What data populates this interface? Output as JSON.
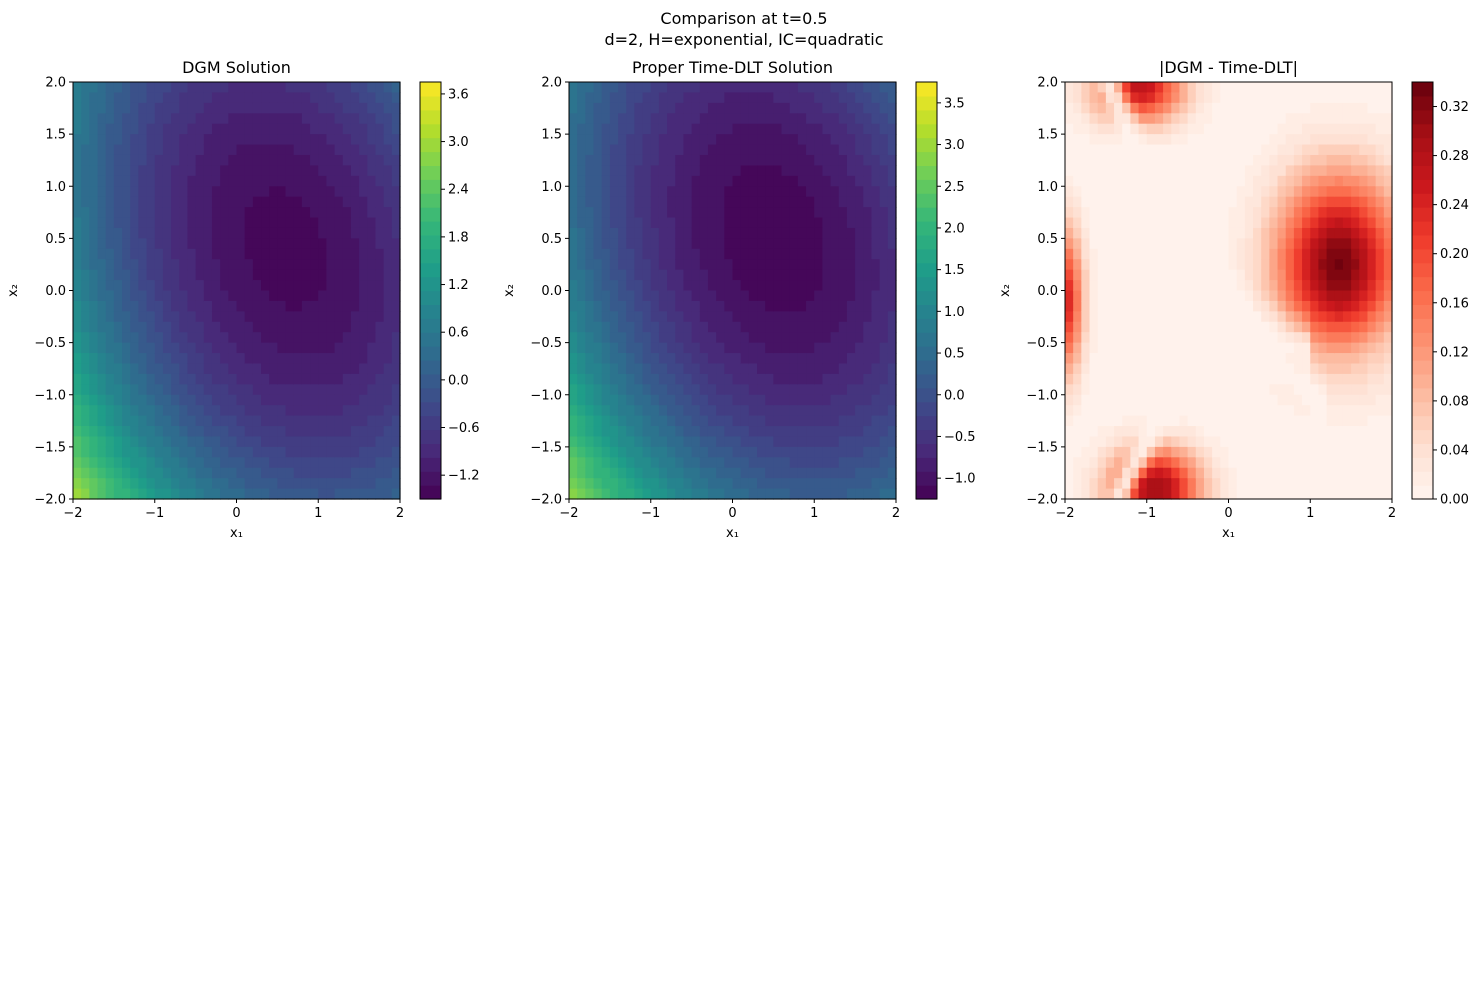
{
  "figure": {
    "suptitle_line1": "Comparison at t=0.5",
    "suptitle_line2": "d=2, H=exponential, IC=quadratic"
  },
  "colors": {
    "viridis": [
      "#440154",
      "#482878",
      "#3e4989",
      "#31688e",
      "#26828e",
      "#1f9e89",
      "#35b779",
      "#6ece58",
      "#b5de2b",
      "#fde725"
    ],
    "reds": [
      "#fff5f0",
      "#fee0d2",
      "#fcbba1",
      "#fc9272",
      "#fb6a4a",
      "#ef3b2c",
      "#cb181d",
      "#a50f15",
      "#67000d"
    ]
  },
  "chart_data": [
    {
      "type": "heatmap",
      "title": "DGM Solution",
      "xlabel": "x₁",
      "ylabel": "x₂",
      "xlim": [
        -2,
        2
      ],
      "ylim": [
        -2,
        2
      ],
      "xticks": [
        -2,
        -1,
        0,
        1,
        2
      ],
      "yticks": [
        -2.0,
        -1.5,
        -1.0,
        -0.5,
        0.0,
        0.5,
        1.0,
        1.5,
        2.0
      ],
      "colormap": "viridis",
      "colorbar_range": [
        -1.5,
        3.75
      ],
      "colorbar_ticks": [
        -1.2,
        -0.6,
        0.0,
        0.6,
        1.2,
        1.8,
        2.4,
        3.0,
        3.6
      ],
      "field": {
        "center": [
          0.6,
          0.4
        ],
        "min_value": -1.4,
        "ax": 0.32,
        "ay": 0.25,
        "cxy": 0.14
      }
    },
    {
      "type": "heatmap",
      "title": "Proper Time-DLT Solution",
      "xlabel": "x₁",
      "ylabel": "x₂",
      "xlim": [
        -2,
        2
      ],
      "ylim": [
        -2,
        2
      ],
      "xticks": [
        -2,
        -1,
        0,
        1,
        2
      ],
      "yticks": [
        -2.0,
        -1.5,
        -1.0,
        -0.5,
        0.0,
        0.5,
        1.0,
        1.5,
        2.0
      ],
      "colormap": "viridis",
      "colorbar_range": [
        -1.25,
        3.75
      ],
      "colorbar_ticks": [
        -1.0,
        -0.5,
        0.0,
        0.5,
        1.0,
        1.5,
        2.0,
        2.5,
        3.0,
        3.5
      ],
      "field": {
        "center": [
          0.5,
          0.5
        ],
        "min_value": -1.2,
        "ax": 0.3,
        "ay": 0.25,
        "cxy": 0.13
      }
    },
    {
      "type": "heatmap",
      "title": "|DGM - Time-DLT|",
      "xlabel": "x₁",
      "ylabel": "x₂",
      "xlim": [
        -2,
        2
      ],
      "ylim": [
        -2,
        2
      ],
      "xticks": [
        -2,
        -1,
        0,
        1,
        2
      ],
      "yticks": [
        -2.0,
        -1.5,
        -1.0,
        -0.5,
        0.0,
        0.5,
        1.0,
        1.5,
        2.0
      ],
      "colormap": "Reds",
      "colorbar_range": [
        0.0,
        0.34
      ],
      "colorbar_ticks": [
        0.0,
        0.04,
        0.08,
        0.12,
        0.16,
        0.2,
        0.24,
        0.28,
        0.32
      ]
    }
  ]
}
